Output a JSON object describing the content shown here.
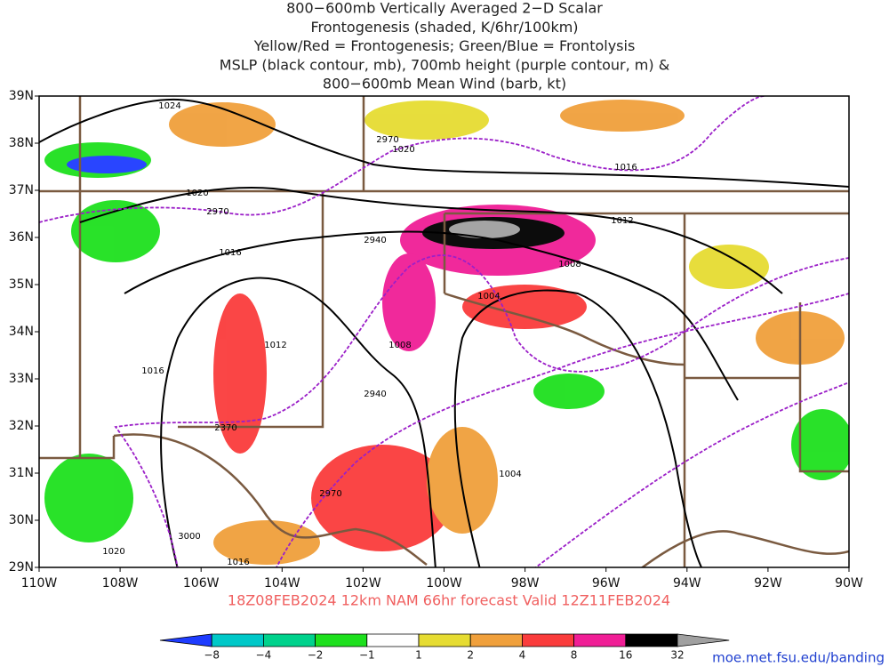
{
  "header": {
    "title": [
      "800−600mb Vertically Averaged 2−D Scalar",
      "Frontogenesis (shaded, K/6hr/100km)",
      "Yellow/Red = Frontogenesis;  Green/Blue = Frontolysis",
      "MSLP (black contour, mb), 700mb height (purple contour, m) &",
      "800−600mb Mean Wind (barb, kt)"
    ]
  },
  "axes": {
    "lat_labels": [
      "39N",
      "38N",
      "37N",
      "36N",
      "35N",
      "34N",
      "33N",
      "32N",
      "31N",
      "30N",
      "29N"
    ],
    "lon_labels": [
      "110W",
      "108W",
      "106W",
      "104W",
      "102W",
      "100W",
      "98W",
      "96W",
      "94W",
      "92W",
      "90W"
    ]
  },
  "forecast": "18Z08FEB2024 12km NAM 66hr forecast Valid 12Z11FEB2024",
  "contour_labels": [
    "1024",
    "2970",
    "1020",
    "1016",
    "1020",
    "2970",
    "1012",
    "2940",
    "1016",
    "1008",
    "1004",
    "1012",
    "1008",
    "1016",
    "2940",
    "2370",
    "1004",
    "2970",
    "3000",
    "1020",
    "1016"
  ],
  "colorbar": {
    "labels": [
      "−8",
      "−4",
      "−2",
      "−1",
      "1",
      "2",
      "4",
      "8",
      "16",
      "32"
    ],
    "colors": [
      "#1e3cff",
      "#00c8c8",
      "#00d28c",
      "#1ee01e",
      "#ffffff",
      "#e6dc32",
      "#f0a03c",
      "#fa3c3c",
      "#f01e96",
      "#000000",
      "#a0a0a0"
    ]
  },
  "credit": "moe.met.fsu.edu/banding"
}
